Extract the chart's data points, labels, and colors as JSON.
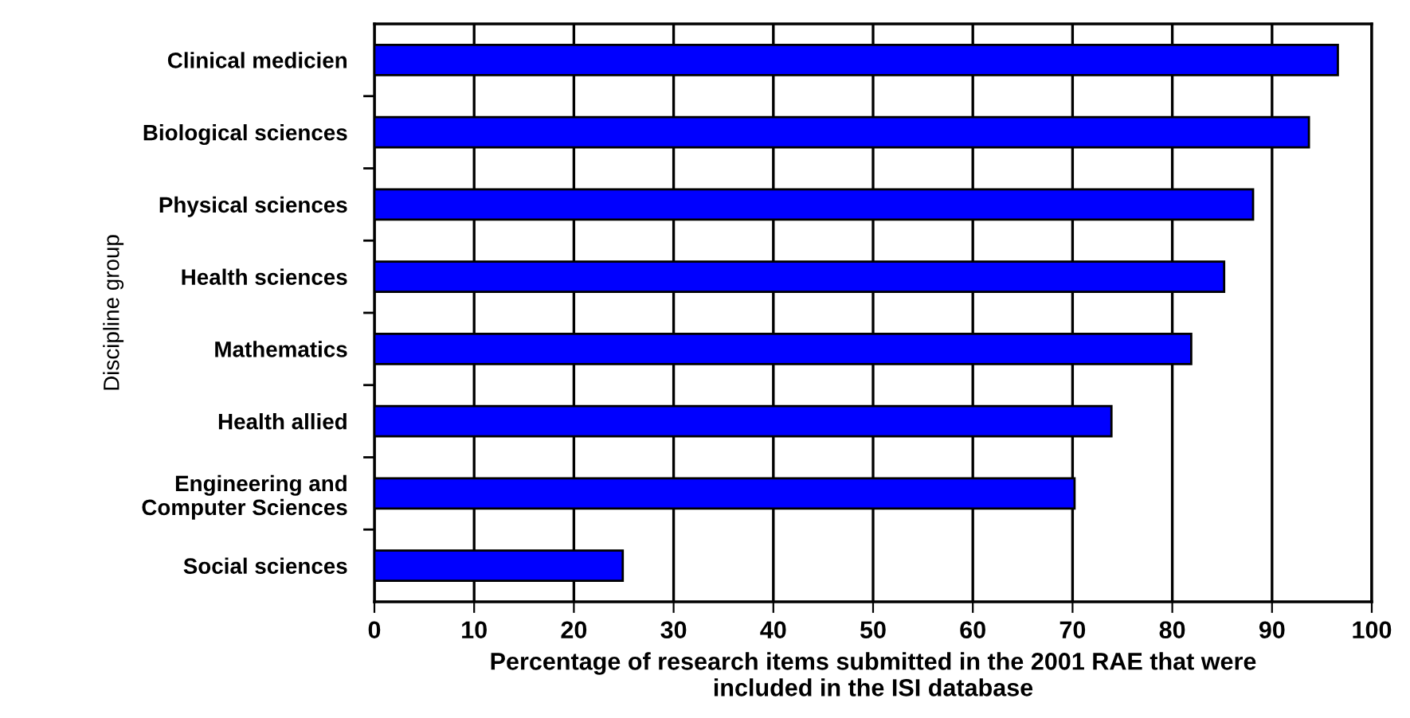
{
  "chart_data": {
    "type": "bar",
    "orientation": "horizontal",
    "ylabel": "Discipline group",
    "xlabel": "Percentage of research items submitted in the 2001 RAE that were\nincluded in the ISI database",
    "categories": [
      "Clinical medicien",
      "Biological sciences",
      "Physical sciences",
      "Health sciences",
      "Mathematics",
      "Health allied",
      "Engineering and\nComputer Sciences",
      "Social sciences"
    ],
    "values": [
      96.6,
      93.7,
      88.1,
      85.2,
      81.9,
      73.9,
      70.2,
      24.9
    ],
    "color": "#0000ff",
    "xlim": [
      0,
      100
    ],
    "xticks": [
      0,
      10,
      20,
      30,
      40,
      50,
      60,
      70,
      80,
      90,
      100
    ],
    "grid": "x",
    "legend": false
  }
}
